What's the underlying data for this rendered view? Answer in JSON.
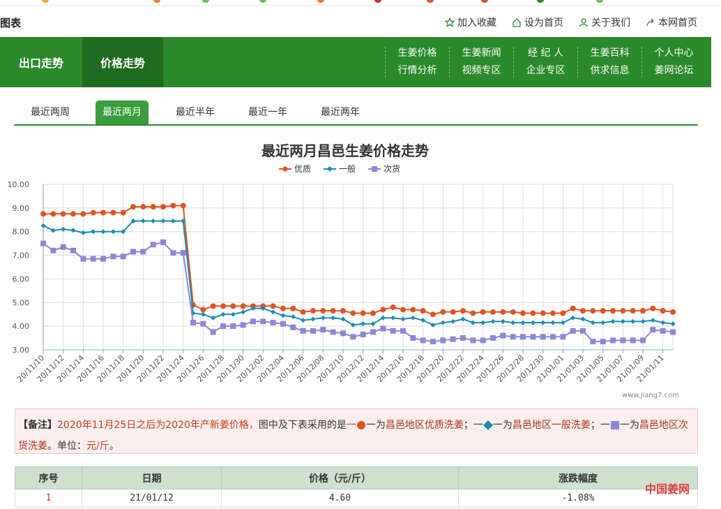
{
  "header": {
    "site_title": "图表",
    "links": [
      "加入收藏",
      "设为首页",
      "关于我们",
      "本网首页"
    ]
  },
  "nav": {
    "tabs": [
      "出口走势",
      "价格走势"
    ],
    "columns": [
      [
        "生姜价格",
        "行情分析"
      ],
      [
        "生姜新闻",
        "视频专区"
      ],
      [
        "经 纪 人",
        "企业专区"
      ],
      [
        "生姜百科",
        "供求信息"
      ],
      [
        "个人中心",
        "姜网论坛"
      ]
    ]
  },
  "subtabs": [
    "最近两周",
    "最近两月",
    "最近半年",
    "最近一年",
    "最近两年"
  ],
  "colors": {
    "green": "#2b8a2b",
    "s1": "#e0541f",
    "s2": "#1a8cb5",
    "s3": "#8b87d6"
  },
  "chart_data": {
    "type": "line",
    "title": "最近两月昌邑生姜价格走势",
    "ylim": [
      3.0,
      10.0
    ],
    "yticks": [
      "3.00",
      "4.00",
      "5.00",
      "6.00",
      "7.00",
      "8.00",
      "9.00",
      "10.00"
    ],
    "grid": true,
    "legend_position": "top-center",
    "categories": [
      "20/11/10",
      "20/11/11",
      "20/11/12",
      "20/11/13",
      "20/11/14",
      "20/11/15",
      "20/11/16",
      "20/11/17",
      "20/11/18",
      "20/11/19",
      "20/11/20",
      "20/11/21",
      "20/11/22",
      "20/11/23",
      "20/11/24",
      "20/11/25",
      "20/11/26",
      "20/11/27",
      "20/11/28",
      "20/11/29",
      "20/11/30",
      "20/12/01",
      "20/12/02",
      "20/12/03",
      "20/12/04",
      "20/12/05",
      "20/12/06",
      "20/12/07",
      "20/12/08",
      "20/12/09",
      "20/12/10",
      "20/12/11",
      "20/12/12",
      "20/12/13",
      "20/12/14",
      "20/12/15",
      "20/12/16",
      "20/12/17",
      "20/12/18",
      "20/12/19",
      "20/12/20",
      "20/12/21",
      "20/12/22",
      "20/12/23",
      "20/12/24",
      "20/12/25",
      "20/12/26",
      "20/12/27",
      "20/12/28",
      "20/12/29",
      "20/12/30",
      "20/12/31",
      "21/01/01",
      "21/01/02",
      "21/01/03",
      "21/01/04",
      "21/01/05",
      "21/01/06",
      "21/01/07",
      "21/01/08",
      "21/01/09",
      "21/01/10",
      "21/01/11",
      "21/01/12"
    ],
    "xtick_labels": [
      "20/11/10",
      "20/11/12",
      "20/11/14",
      "20/11/16",
      "20/11/18",
      "20/11/20",
      "20/11/22",
      "20/11/24",
      "20/11/26",
      "20/11/28",
      "20/11/30",
      "20/12/02",
      "20/12/04",
      "20/12/06",
      "20/12/08",
      "20/12/10",
      "20/12/12",
      "20/12/14",
      "20/12/16",
      "20/12/18",
      "20/12/20",
      "20/12/22",
      "20/12/24",
      "20/12/26",
      "20/12/28",
      "20/12/30",
      "21/01/01",
      "21/01/03",
      "21/01/05",
      "21/01/07",
      "21/01/09",
      "21/01/11"
    ],
    "series": [
      {
        "name": "优质",
        "marker": "circle",
        "values": [
          8.75,
          8.75,
          8.75,
          8.75,
          8.75,
          8.8,
          8.8,
          8.8,
          8.8,
          9.05,
          9.05,
          9.05,
          9.05,
          9.1,
          9.1,
          4.9,
          4.7,
          4.85,
          4.85,
          4.85,
          4.85,
          4.85,
          4.85,
          4.85,
          4.75,
          4.75,
          4.6,
          4.65,
          4.65,
          4.65,
          4.65,
          4.55,
          4.55,
          4.55,
          4.7,
          4.8,
          4.7,
          4.7,
          4.65,
          4.5,
          4.6,
          4.6,
          4.65,
          4.55,
          4.6,
          4.6,
          4.6,
          4.6,
          4.55,
          4.55,
          4.55,
          4.55,
          4.55,
          4.75,
          4.65,
          4.65,
          4.65,
          4.65,
          4.65,
          4.65,
          4.65,
          4.75,
          4.65,
          4.6
        ]
      },
      {
        "name": "一般",
        "marker": "diamond",
        "values": [
          8.25,
          8.05,
          8.1,
          8.05,
          7.95,
          8.0,
          8.0,
          8.0,
          8.0,
          8.45,
          8.45,
          8.45,
          8.45,
          8.45,
          8.45,
          4.55,
          4.5,
          4.35,
          4.5,
          4.5,
          4.6,
          4.75,
          4.75,
          4.6,
          4.45,
          4.4,
          4.25,
          4.3,
          4.35,
          4.35,
          4.3,
          4.05,
          4.1,
          4.1,
          4.35,
          4.35,
          4.3,
          4.35,
          4.25,
          4.05,
          4.15,
          4.2,
          4.3,
          4.15,
          4.15,
          4.2,
          4.2,
          4.15,
          4.15,
          4.15,
          4.15,
          4.15,
          4.15,
          4.35,
          4.3,
          4.15,
          4.15,
          4.2,
          4.2,
          4.2,
          4.2,
          4.25,
          4.15,
          4.1
        ]
      },
      {
        "name": "次货",
        "marker": "square",
        "values": [
          7.5,
          7.2,
          7.35,
          7.2,
          6.85,
          6.85,
          6.85,
          6.95,
          6.95,
          7.15,
          7.15,
          7.45,
          7.55,
          7.1,
          7.1,
          4.15,
          4.1,
          3.75,
          4.0,
          4.0,
          4.05,
          4.2,
          4.2,
          4.15,
          4.1,
          3.95,
          3.8,
          3.8,
          3.85,
          3.75,
          3.7,
          3.55,
          3.65,
          3.75,
          3.9,
          3.8,
          3.8,
          3.5,
          3.4,
          3.35,
          3.4,
          3.45,
          3.5,
          3.4,
          3.4,
          3.5,
          3.6,
          3.55,
          3.55,
          3.55,
          3.55,
          3.55,
          3.55,
          3.8,
          3.8,
          3.35,
          3.35,
          3.4,
          3.4,
          3.4,
          3.4,
          3.85,
          3.8,
          3.75
        ]
      }
    ]
  },
  "chart_watermark": "www.jiang7.com",
  "note": {
    "label": "【备注】",
    "text1": "2020年11月25日之后为2020年产新姜价格，",
    "text2": "图中及下表采用的是",
    "dash": "一",
    "p1_pre": "一为",
    "p1_em": "昌邑地区优质洗姜",
    "sep": "；",
    "p2_pre": "一为",
    "p2_em": "昌邑地区一般洗姜",
    "p3_pre": "一为",
    "p3_em": "昌邑地区次货洗",
    "line2_em": "姜",
    "unit_label": "。单位：",
    "unit": "元/斤",
    "end": "。"
  },
  "table": {
    "headers": [
      "序号",
      "日期",
      "价格（元/斤）",
      "涨跌幅度"
    ],
    "rows": [
      [
        "1",
        "21/01/12",
        "4.60",
        "-1.08%"
      ]
    ]
  },
  "footer_watermark": "中国姜网"
}
